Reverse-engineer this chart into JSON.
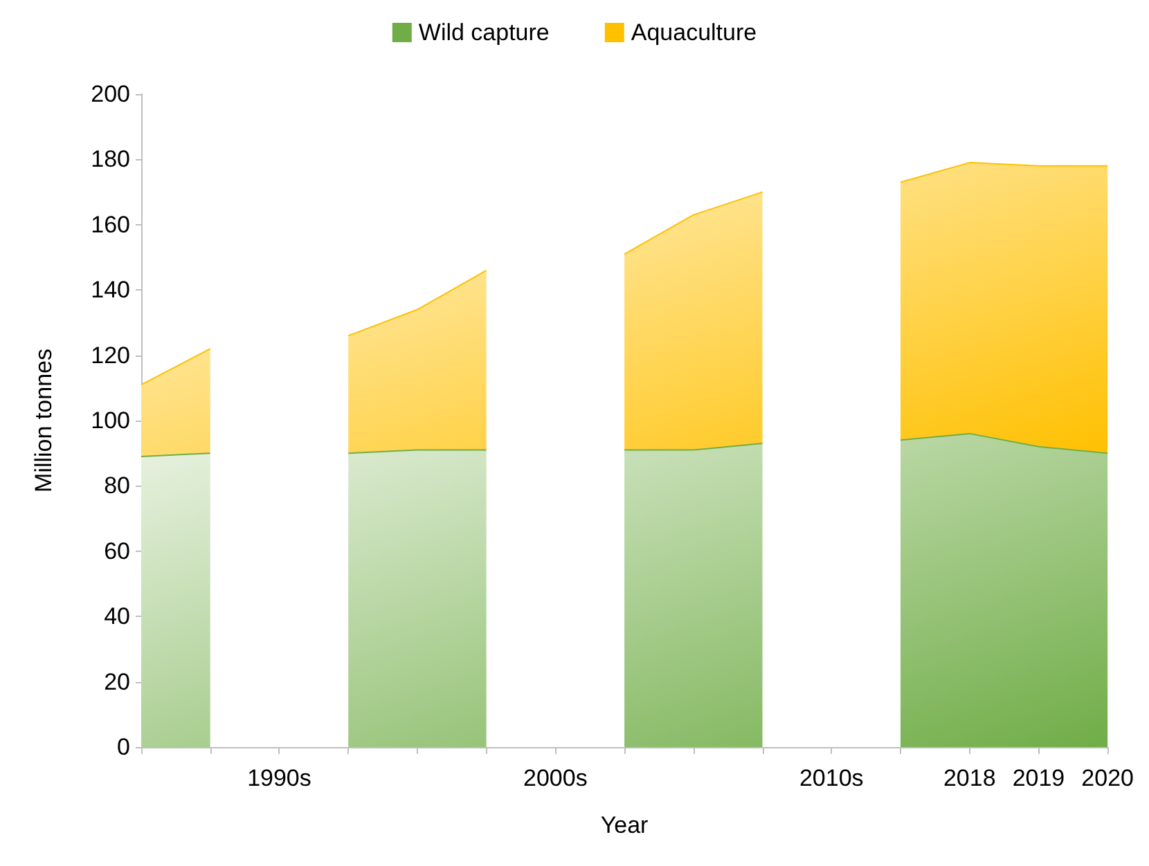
{
  "chart_data": {
    "type": "area",
    "stacked": true,
    "xlabel": "Year",
    "ylabel": "Million tonnes",
    "categories": [
      null,
      null,
      "1990s",
      null,
      null,
      null,
      "2000s",
      null,
      null,
      null,
      "2010s",
      null,
      "2018",
      "2019",
      "2020"
    ],
    "series": [
      {
        "name": "Wild capture",
        "color": "#70ad47",
        "values": [
          89,
          90,
          null,
          90,
          91,
          91,
          null,
          91,
          91,
          93,
          null,
          94,
          96,
          92,
          90
        ]
      },
      {
        "name": "Aquaculture",
        "color": "#ffc000",
        "values": [
          22,
          32,
          null,
          36,
          43,
          55,
          null,
          60,
          72,
          77,
          null,
          79,
          83,
          86,
          88
        ]
      }
    ],
    "ylim": [
      0,
      200
    ],
    "yticks": [
      0,
      20,
      40,
      60,
      80,
      100,
      120,
      140,
      160,
      180,
      200
    ],
    "grid": false,
    "legend": "top"
  }
}
